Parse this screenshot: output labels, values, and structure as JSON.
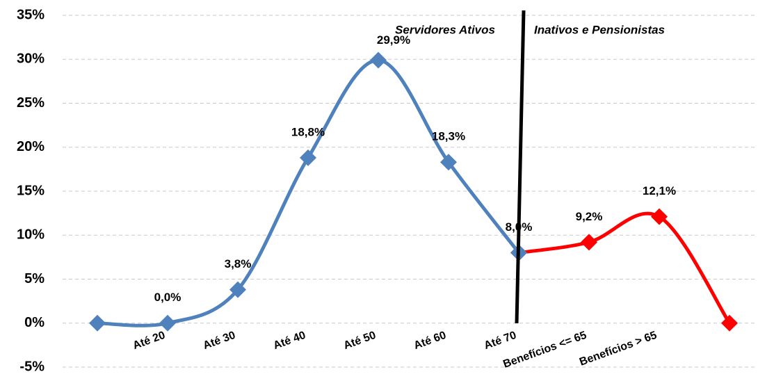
{
  "chart_data": {
    "type": "line",
    "categories": [
      null,
      "Até 20",
      "Até 30",
      "Até 40",
      "Até 50",
      "Até 60",
      "Até 70",
      "Benefícios <= 65",
      "Benefícios > 65",
      null
    ],
    "series": [
      {
        "color": "#4f81bd",
        "values": [
          0,
          0.0,
          3.8,
          18.8,
          29.9,
          18.3,
          8.0,
          null,
          null,
          null
        ],
        "value_labels": [
          null,
          "0,0%",
          "3,8%",
          "18,8%",
          "29,9%",
          "18,3%",
          "8,0%",
          null,
          null,
          null
        ]
      },
      {
        "color": "#ff0000",
        "values": [
          null,
          null,
          null,
          null,
          null,
          null,
          8.0,
          9.2,
          12.1,
          0
        ],
        "value_labels": [
          null,
          null,
          null,
          null,
          null,
          null,
          null,
          "9,2%",
          "12,1%",
          null
        ]
      }
    ],
    "annotations": [
      "Servidores Ativos",
      "Inativos e Pensionistas"
    ],
    "ylim": [
      -5,
      35
    ],
    "yticks": [
      {
        "value": -5,
        "label": "-5%"
      },
      {
        "value": 0,
        "label": "0%"
      },
      {
        "value": 5,
        "label": "5%"
      },
      {
        "value": 10,
        "label": "10%"
      },
      {
        "value": 15,
        "label": "15%"
      },
      {
        "value": 20,
        "label": "20%"
      },
      {
        "value": 25,
        "label": "25%"
      },
      {
        "value": 30,
        "label": "30%"
      },
      {
        "value": 35,
        "label": "35%"
      }
    ],
    "grid": true
  }
}
